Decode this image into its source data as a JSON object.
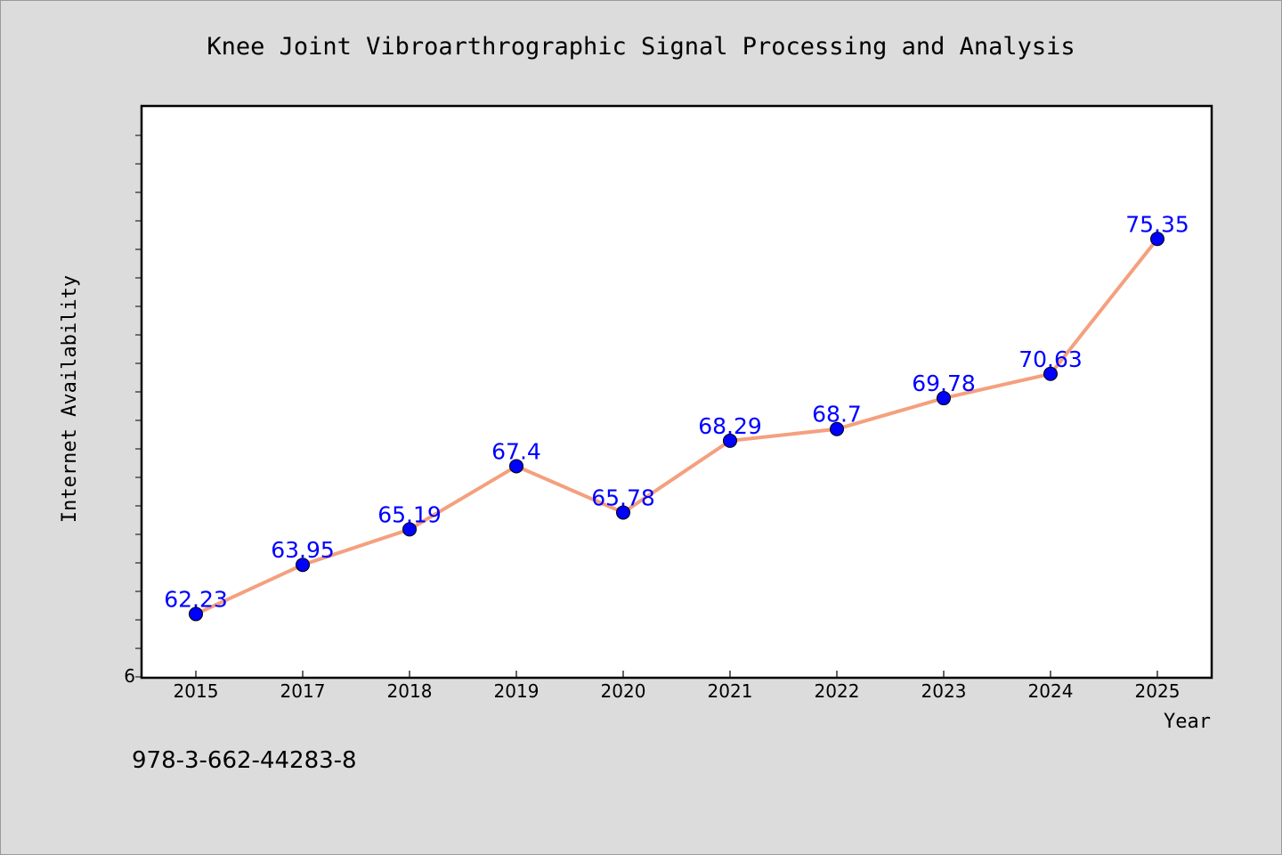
{
  "chart_data": {
    "type": "line",
    "title": "Knee Joint Vibroarthrographic Signal Processing and Analysis",
    "xlabel": "Year",
    "ylabel": "Internet Availability",
    "categories": [
      "2015",
      "2017",
      "2018",
      "2019",
      "2020",
      "2021",
      "2022",
      "2023",
      "2024",
      "2025"
    ],
    "series": [
      {
        "values": [
          62.23,
          63.95,
          65.19,
          67.4,
          65.78,
          68.29,
          68.7,
          69.78,
          70.63,
          75.35
        ],
        "labels": [
          "62.23",
          "63.95",
          "65.19",
          "67.4",
          "65.78",
          "68.29",
          "68.7",
          "69.78",
          "70.63",
          "75.35"
        ]
      }
    ],
    "ylim": [
      60,
      80
    ],
    "y_tick_label": "6",
    "grid": false,
    "line_color": "#f4a07e",
    "marker_color": "#0000ff",
    "label_color": "#0000ff"
  },
  "footnote": "978-3-662-44283-8"
}
